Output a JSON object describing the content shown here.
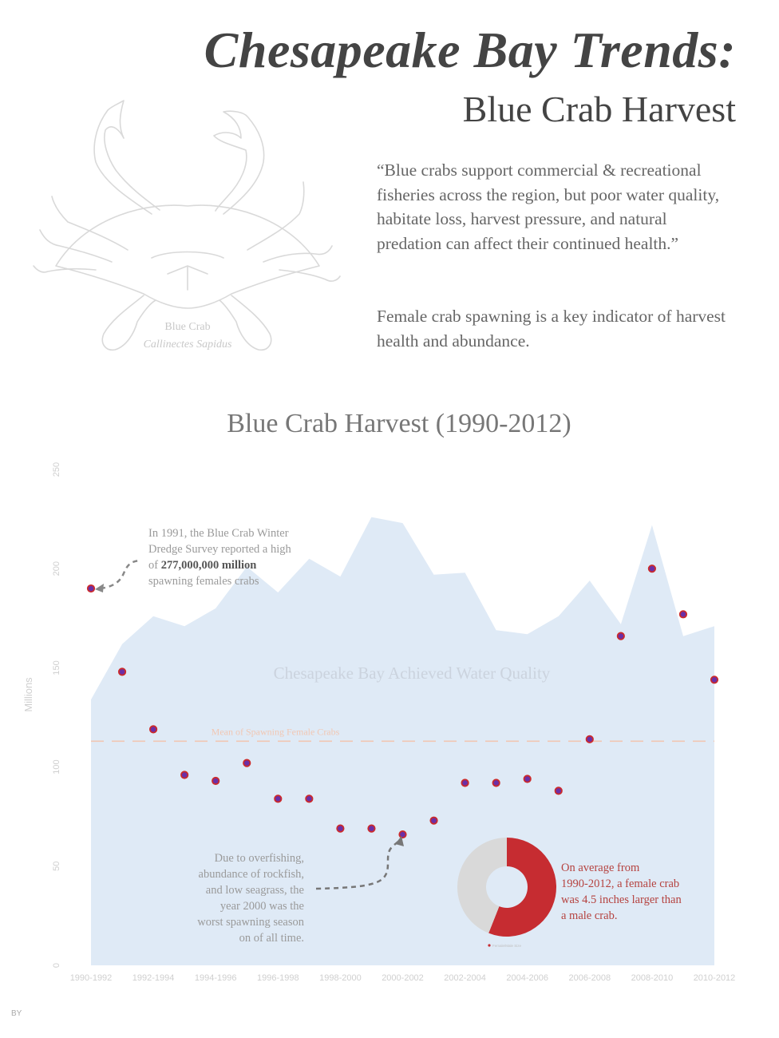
{
  "header": {
    "title": "Chesapeake Bay Trends:",
    "subtitle": "Blue Crab Harvest",
    "quote": "“Blue crabs support commercial & recreational fisheries across the region, but poor water quality, habitate loss, harvest pressure, and natural predation can affect their continued health.”",
    "indicator": "Female crab spawning is a key indicator of harvest health and abundance."
  },
  "crab": {
    "name": "Blue Crab",
    "scientific": "Callinectes Sapidus"
  },
  "footer": {
    "by": "BY"
  },
  "colors": {
    "area": "#dfeaf6",
    "dot_fill": "#6b2fa6",
    "dot_ring": "#cc2a2a",
    "mean_line": "#f1c7b3",
    "donut_female": "#c62c31",
    "donut_male": "#d9d9d9",
    "axis_text": "#cfcfcf"
  },
  "chart_data": {
    "type": "scatter",
    "title": "Blue Crab Harvest (1990-2012)",
    "ylabel": "Millions",
    "ylim": [
      0,
      250
    ],
    "yticks": [
      0,
      50,
      100,
      150,
      200,
      250
    ],
    "x_tick_labels": [
      "1990-1992",
      "1992-1994",
      "1994-1996",
      "1996-1998",
      "1998-2000",
      "2000-2002",
      "2002-2004",
      "2004-2006",
      "2006-2008",
      "2008-2010",
      "2010-2012"
    ],
    "points": [
      190,
      148,
      119,
      96,
      93,
      102,
      84,
      84,
      69,
      69,
      66,
      73,
      92,
      92,
      94,
      88,
      114,
      166,
      200,
      177,
      144
    ],
    "area": {
      "label": "Chesapeake Bay Achieved Water Quality",
      "values": [
        134,
        162,
        176,
        171,
        180,
        201,
        188,
        205,
        196,
        226,
        223,
        197,
        198,
        169,
        167,
        176,
        194,
        172,
        222,
        166,
        171
      ]
    },
    "mean": {
      "label": "Mean of Spawning Female Crabs",
      "value": 113
    },
    "annotations": {
      "high": {
        "lines": [
          [
            {
              "t": "In 1991, the Blue Crab Winter"
            }
          ],
          [
            {
              "t": "Dredge Survey reported a high"
            }
          ],
          [
            {
              "t": "of "
            },
            {
              "t": "277,000,000 million",
              "b": true
            }
          ],
          [
            {
              "t": "spawning females crabs"
            }
          ]
        ]
      },
      "low": {
        "lines": [
          "Due to overfishing,",
          "abundance of rockfish,",
          "and low seagrass, the",
          "year 2000 was the",
          "worst spawning season",
          "on of all time."
        ]
      }
    },
    "donut": {
      "female_share": 0.56,
      "lines": [
        "On average from",
        "1990-2012, a female crab",
        "was 4.5 inches larger than",
        "a male crab."
      ],
      "legend": "Female/Male Size"
    }
  }
}
